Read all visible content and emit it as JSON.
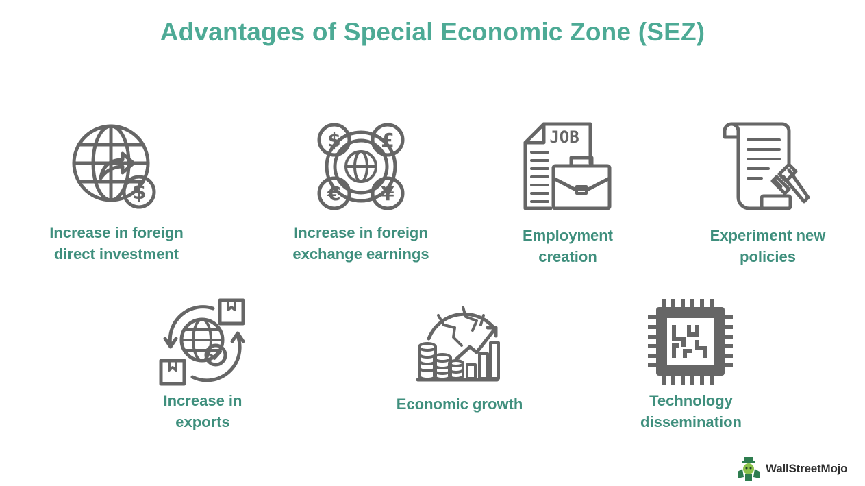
{
  "title": "Advantages of Special Economic Zone (SEZ)",
  "items": [
    {
      "label": "Increase in foreign\ndirect investment",
      "icon": "globe-dollar-icon"
    },
    {
      "label": "Increase in foreign\nexchange earnings",
      "icon": "currency-exchange-icon"
    },
    {
      "label": "Employment\ncreation",
      "icon": "job-briefcase-icon"
    },
    {
      "label": "Experiment new\npolicies",
      "icon": "policy-gavel-icon"
    },
    {
      "label": "Increase in\nexports",
      "icon": "global-exports-icon"
    },
    {
      "label": "Economic growth",
      "icon": "growth-chart-icon"
    },
    {
      "label": "Technology\ndissemination",
      "icon": "microchip-icon"
    }
  ],
  "logo": {
    "text": "WallStreetMojo",
    "icon": "wallstreetmojo-mascot-icon"
  },
  "colors": {
    "title": "#4daa95",
    "label": "#3f8f7d",
    "icon": "#666666"
  }
}
